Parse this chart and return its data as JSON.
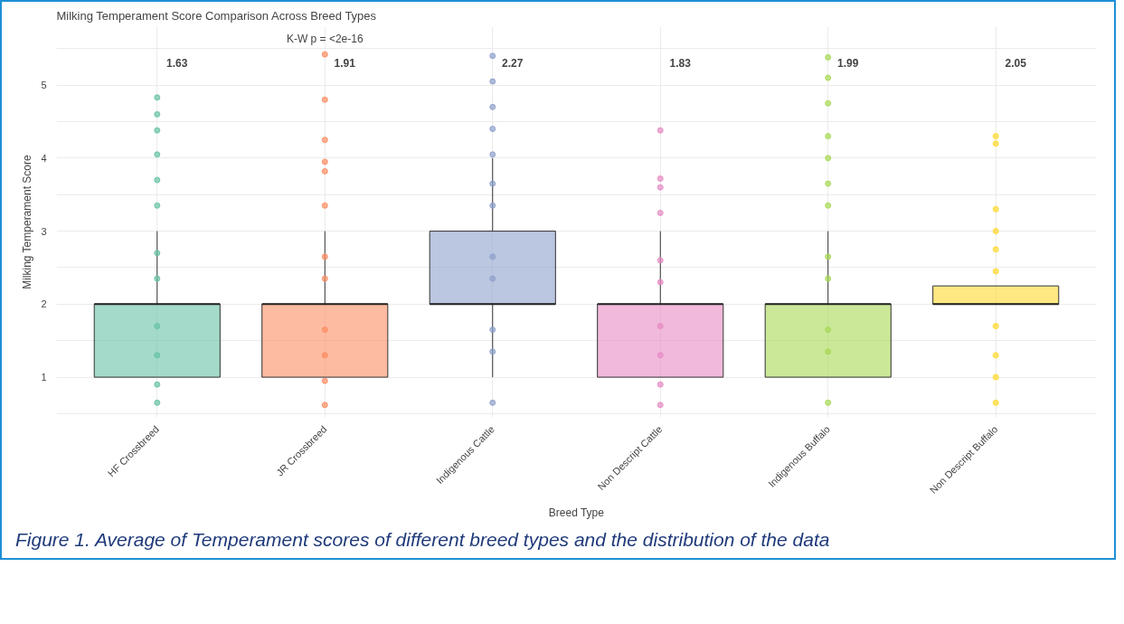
{
  "chart_data": {
    "type": "box",
    "title": "Milking Temperament Score Comparison Across Breed Types",
    "subtitle": "K-W p = <2e-16",
    "xlabel": "Breed Type",
    "ylabel": "Milking Temperament Score",
    "categories": [
      "HF Crossbreed",
      "JR Crossbreed",
      "Indigenous Cattle",
      "Non Descript Cattle",
      "Indigenous Buffalo",
      "Non Descript Buffalo"
    ],
    "colors": [
      "#66c2a5",
      "#fc8d62",
      "#8da0cb",
      "#e78ac3",
      "#a6d854",
      "#ffd92f"
    ],
    "boxes": [
      {
        "low": 1,
        "q1": 1,
        "median": 2,
        "q3": 2,
        "high": 3
      },
      {
        "low": 1,
        "q1": 1,
        "median": 2,
        "q3": 2,
        "high": 3
      },
      {
        "low": 1,
        "q1": 2,
        "median": 2,
        "q3": 3,
        "high": 4
      },
      {
        "low": 1,
        "q1": 1,
        "median": 2,
        "q3": 2,
        "high": 3
      },
      {
        "low": 1,
        "q1": 1,
        "median": 2,
        "q3": 2,
        "high": 3
      },
      {
        "low": 2,
        "q1": 2,
        "median": 2,
        "q3": 2.25,
        "high": 2.25
      }
    ],
    "series": [
      {
        "type": "scatter",
        "color": "#66c2a5",
        "x": [
          "HF Crossbreed",
          "HF Crossbreed",
          "HF Crossbreed",
          "HF Crossbreed",
          "HF Crossbreed",
          "HF Crossbreed",
          "HF Crossbreed",
          "HF Crossbreed",
          "HF Crossbreed",
          "HF Crossbreed",
          "HF Crossbreed",
          "HF Crossbreed"
        ],
        "values": [
          0.65,
          0.9,
          1.3,
          1.7,
          2.35,
          2.7,
          3.35,
          3.7,
          4.05,
          4.38,
          4.6,
          4.83
        ]
      },
      {
        "type": "scatter",
        "color": "#fc8d62",
        "x": [
          "JR Crossbreed",
          "JR Crossbreed",
          "JR Crossbreed",
          "JR Crossbreed",
          "JR Crossbreed",
          "JR Crossbreed",
          "JR Crossbreed",
          "JR Crossbreed",
          "JR Crossbreed",
          "JR Crossbreed",
          "JR Crossbreed",
          "JR Crossbreed"
        ],
        "values": [
          0.62,
          0.95,
          1.3,
          1.65,
          2.35,
          2.65,
          3.35,
          3.82,
          3.95,
          4.25,
          4.8,
          5.42
        ]
      },
      {
        "type": "scatter",
        "color": "#8da0cb",
        "x": [
          "Indigenous Cattle",
          "Indigenous Cattle",
          "Indigenous Cattle",
          "Indigenous Cattle",
          "Indigenous Cattle",
          "Indigenous Cattle",
          "Indigenous Cattle",
          "Indigenous Cattle",
          "Indigenous Cattle",
          "Indigenous Cattle",
          "Indigenous Cattle",
          "Indigenous Cattle"
        ],
        "values": [
          0.65,
          1.35,
          1.65,
          2.35,
          2.65,
          3.35,
          3.65,
          4.05,
          4.4,
          4.7,
          5.05,
          5.4
        ]
      },
      {
        "type": "scatter",
        "color": "#e78ac3",
        "x": [
          "Non Descript Cattle",
          "Non Descript Cattle",
          "Non Descript Cattle",
          "Non Descript Cattle",
          "Non Descript Cattle",
          "Non Descript Cattle",
          "Non Descript Cattle",
          "Non Descript Cattle",
          "Non Descript Cattle",
          "Non Descript Cattle"
        ],
        "values": [
          0.62,
          0.9,
          1.3,
          1.7,
          2.3,
          2.6,
          3.25,
          3.6,
          3.72,
          4.38
        ]
      },
      {
        "type": "scatter",
        "color": "#a6d854",
        "x": [
          "Indigenous Buffalo",
          "Indigenous Buffalo",
          "Indigenous Buffalo",
          "Indigenous Buffalo",
          "Indigenous Buffalo",
          "Indigenous Buffalo",
          "Indigenous Buffalo",
          "Indigenous Buffalo",
          "Indigenous Buffalo",
          "Indigenous Buffalo",
          "Indigenous Buffalo",
          "Indigenous Buffalo"
        ],
        "values": [
          0.65,
          1.35,
          1.65,
          2.35,
          2.65,
          3.35,
          3.65,
          4.0,
          4.3,
          4.75,
          5.1,
          5.38
        ]
      },
      {
        "type": "scatter",
        "color": "#ffd92f",
        "x": [
          "Non Descript Buffalo",
          "Non Descript Buffalo",
          "Non Descript Buffalo",
          "Non Descript Buffalo",
          "Non Descript Buffalo",
          "Non Descript Buffalo",
          "Non Descript Buffalo",
          "Non Descript Buffalo",
          "Non Descript Buffalo",
          "Non Descript Buffalo"
        ],
        "values": [
          0.65,
          1.0,
          1.3,
          1.7,
          2.45,
          2.75,
          3.0,
          3.3,
          4.2,
          4.3
        ]
      }
    ],
    "marker": "circle",
    "ylim": [
      0.45,
      5.8
    ],
    "yticks": [
      {
        "value": 0.5,
        "label": null
      },
      1,
      {
        "value": 1.5,
        "label": null
      },
      2,
      {
        "value": 2.5,
        "label": null
      },
      3,
      {
        "value": 3.5,
        "label": null
      },
      4,
      {
        "value": 4.5,
        "label": null
      },
      5,
      {
        "value": 5.5,
        "label": null
      }
    ],
    "grid": true,
    "annotations": [
      "1.63",
      "1.91",
      "2.27",
      "1.83",
      "1.99",
      "2.05",
      "Figure 1. Average of Temperament scores of different breed types and the distribution of the data"
    ]
  }
}
